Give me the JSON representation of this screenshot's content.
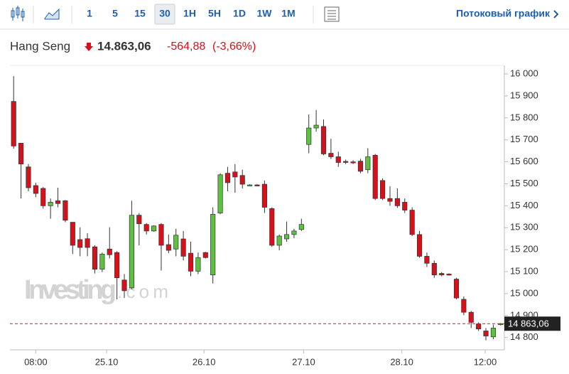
{
  "toolbar": {
    "intervals": [
      "1",
      "5",
      "15",
      "30",
      "1H",
      "5H",
      "1D",
      "1W",
      "1M"
    ],
    "selected": "30",
    "stream_link": "Потоковый график"
  },
  "quote": {
    "name": "Hang Seng",
    "price": "14.863,06",
    "change": "-564,88",
    "change_percent": "(-3,66%)"
  },
  "chart_data": {
    "type": "candlestick",
    "watermark": [
      "Investing",
      ".com"
    ],
    "x": [
      0,
      1,
      2,
      3,
      4,
      5,
      6,
      7,
      8,
      9,
      10,
      11,
      12,
      13,
      14,
      15,
      16,
      17,
      18,
      19,
      20,
      21,
      22,
      23,
      24,
      25,
      26,
      27,
      28,
      29,
      30,
      31,
      32,
      33,
      34,
      35,
      36,
      37,
      38,
      39,
      40,
      41,
      42,
      43,
      44,
      45,
      46,
      47,
      48,
      49,
      50,
      51,
      52,
      53,
      54,
      55,
      56,
      57,
      58,
      59,
      60,
      61,
      62,
      63,
      64,
      65,
      66
    ],
    "open": [
      15875,
      15685,
      15577,
      15492,
      15479,
      15400,
      15423,
      15423,
      15325,
      15246,
      15250,
      15213,
      15111,
      15203,
      15187,
      15062,
      15026,
      15357,
      15315,
      15285,
      15315,
      15223,
      15203,
      15249,
      15184,
      15102,
      15187,
      15085,
      15367,
      15548,
      15554,
      15538,
      15492,
      15495,
      15498,
      15387,
      15220,
      15249,
      15269,
      15292,
      15679,
      15754,
      15761,
      15639,
      15623,
      15602,
      15600,
      15603,
      15564,
      15630,
      15515,
      15433,
      15433,
      15416,
      15380,
      15269,
      15170,
      15138,
      15092,
      15089,
      15066,
      14974,
      14915,
      14862,
      14830,
      14803,
      14859
    ],
    "high": [
      15990,
      15685,
      15590,
      15505,
      15485,
      15433,
      15482,
      15426,
      15325,
      15302,
      15275,
      15220,
      15187,
      15302,
      15193,
      15089,
      15423,
      15367,
      15321,
      15311,
      15321,
      15269,
      15295,
      15285,
      15236,
      15187,
      15190,
      15393,
      15548,
      15577,
      15590,
      15564,
      15498,
      15498,
      15515,
      15393,
      15269,
      15328,
      15295,
      15341,
      15816,
      15836,
      15793,
      15705,
      15646,
      15610,
      15607,
      15613,
      15662,
      15636,
      15525,
      15489,
      15479,
      15433,
      15393,
      15285,
      15187,
      15151,
      15098,
      15092,
      15072,
      14987,
      14921,
      14869,
      14843,
      14859,
      14866
    ],
    "low": [
      15660,
      15433,
      15466,
      15439,
      15387,
      15341,
      15393,
      15325,
      15180,
      15170,
      15170,
      15092,
      15098,
      15160,
      14974,
      14980,
      15020,
      15220,
      15269,
      15282,
      15105,
      15184,
      15170,
      15151,
      15079,
      15089,
      15160,
      15046,
      15361,
      15466,
      15459,
      15479,
      15489,
      15489,
      15367,
      15213,
      15197,
      15236,
      15252,
      15285,
      15639,
      15738,
      15630,
      15613,
      15577,
      15590,
      15590,
      15548,
      15548,
      15426,
      15426,
      15400,
      15390,
      15367,
      15262,
      15164,
      15121,
      15072,
      15079,
      15082,
      14974,
      14902,
      14843,
      14830,
      14787,
      14793,
      14855
    ],
    "close": [
      15672,
      15590,
      15482,
      15456,
      15400,
      15416,
      15410,
      15334,
      15220,
      15210,
      15210,
      15111,
      15180,
      15177,
      15072,
      15013,
      15357,
      15318,
      15285,
      15308,
      15220,
      15197,
      15266,
      15170,
      15102,
      15164,
      15164,
      15361,
      15541,
      15505,
      15531,
      15498,
      15495,
      15492,
      15393,
      15220,
      15262,
      15269,
      15285,
      15315,
      15754,
      15767,
      15636,
      15623,
      15597,
      15600,
      15598,
      15557,
      15623,
      15433,
      15433,
      15420,
      15400,
      15380,
      15269,
      15170,
      15138,
      15085,
      15085,
      15085,
      14980,
      14915,
      14869,
      14839,
      14807,
      14843,
      14863.06
    ],
    "up_color": "#5cc13f",
    "down_color": "#d5111b",
    "xlim": [
      -0.5,
      66.5
    ],
    "xticks": [
      {
        "value": 3,
        "label": "08:00"
      },
      {
        "value": 12.6,
        "label": "25.10"
      },
      {
        "value": 25.8,
        "label": "26.10"
      },
      {
        "value": 39.3,
        "label": "27.10"
      },
      {
        "value": 52.6,
        "label": "28.10"
      },
      {
        "value": 63.9,
        "label": "12:00"
      }
    ],
    "ylim": [
      14744,
      16039
    ],
    "yticks": [
      {
        "value": 14800,
        "label": "14 800"
      },
      {
        "value": 14900,
        "label": "14 900"
      },
      {
        "value": 15000,
        "label": "15 000"
      },
      {
        "value": 15100,
        "label": "15 100"
      },
      {
        "value": 15200,
        "label": "15 200"
      },
      {
        "value": 15300,
        "label": "15 300"
      },
      {
        "value": 15400,
        "label": "15 400"
      },
      {
        "value": 15500,
        "label": "15 500"
      },
      {
        "value": 15600,
        "label": "15 600"
      },
      {
        "value": 15700,
        "label": "15 700"
      },
      {
        "value": 15800,
        "label": "15 800"
      },
      {
        "value": 15900,
        "label": "15 900"
      },
      {
        "value": 16000,
        "label": "16 000"
      }
    ],
    "grid": false,
    "last_price": {
      "value": 14863.06,
      "label": "14 863,06"
    },
    "last_price_color": "#a0322a"
  }
}
